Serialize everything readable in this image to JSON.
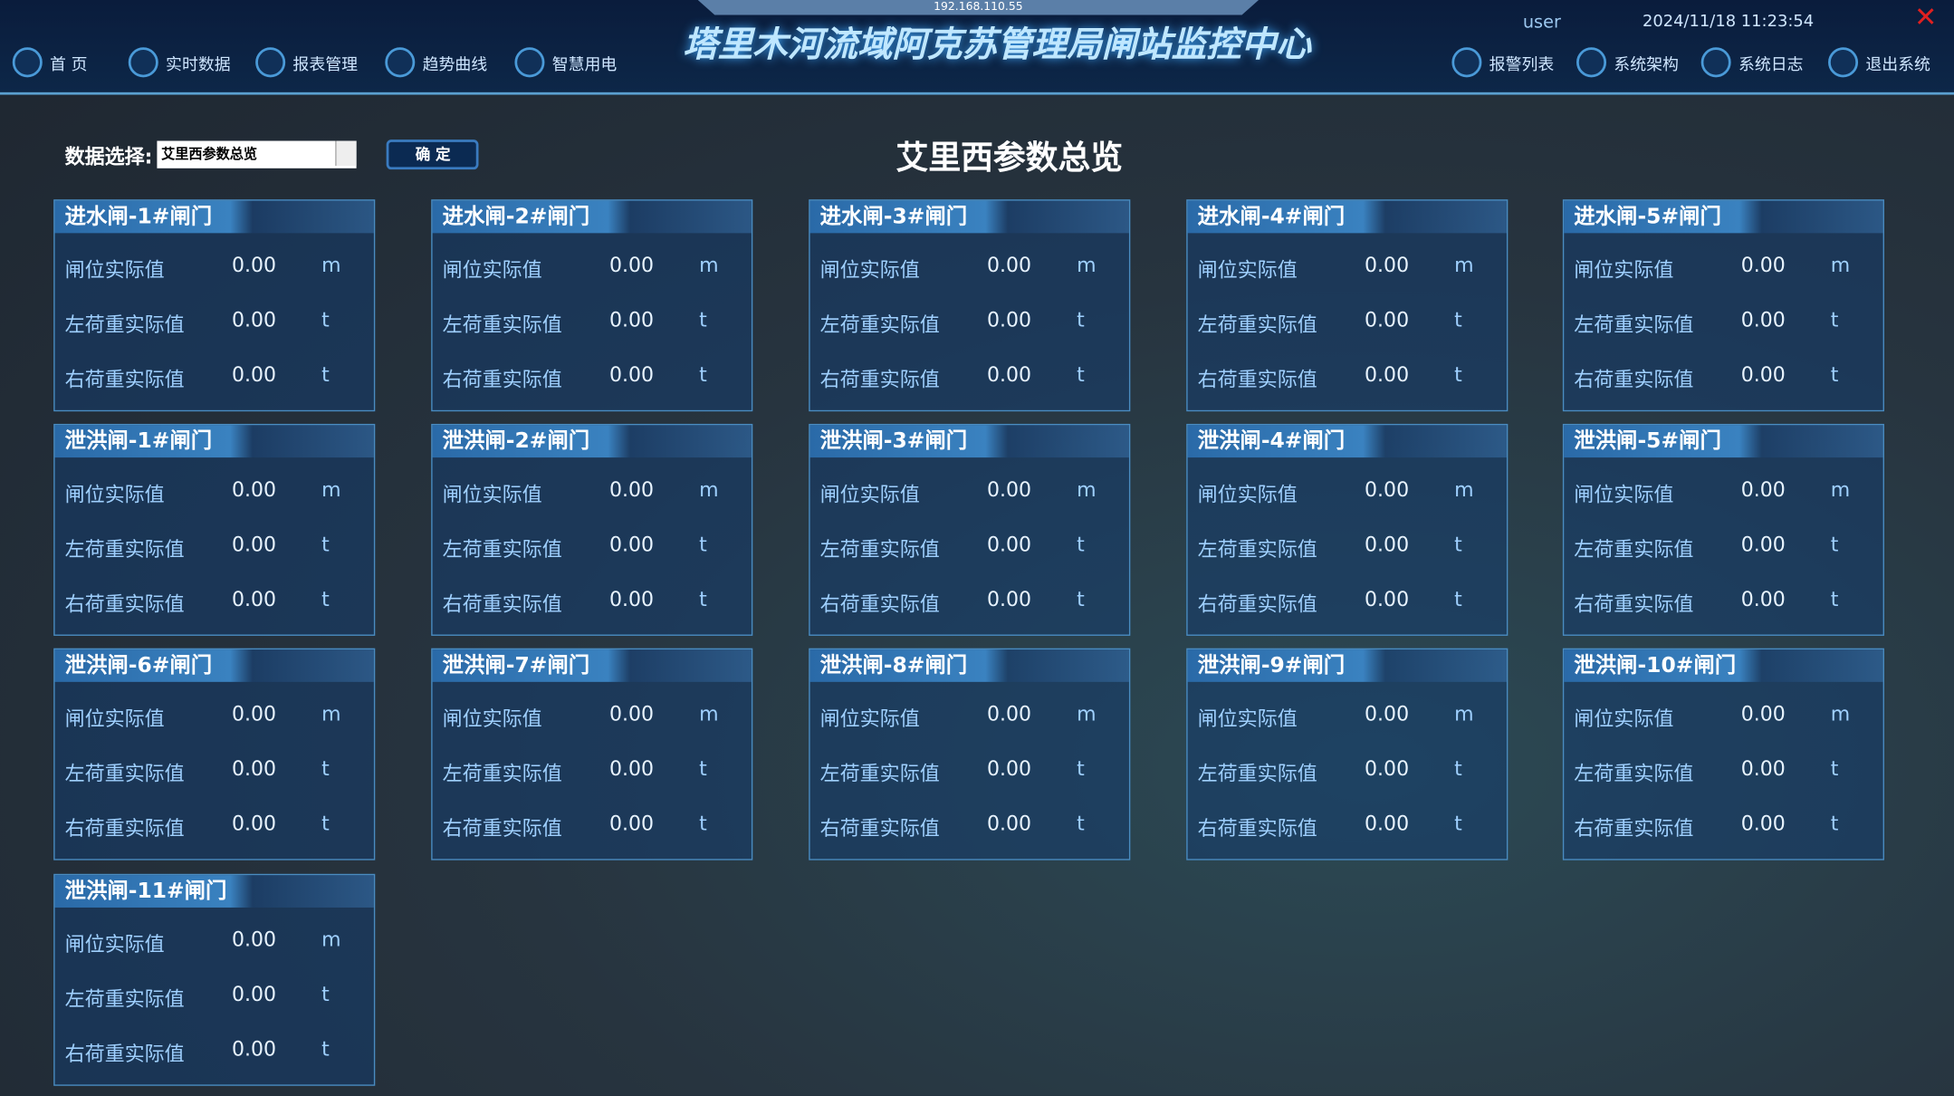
{
  "remote_bar": {
    "address": "192.168.110.55"
  },
  "header": {
    "title": "塔里木河流域阿克苏管理局闸站监控中心",
    "nav_left": [
      "首 页",
      "实时数据",
      "报表管理",
      "趋势曲线",
      "智慧用电"
    ],
    "nav_right": [
      "报警列表",
      "系统架构",
      "系统日志",
      "退出系统"
    ],
    "user": "user",
    "datetime": "2024/11/18 11:23:54"
  },
  "toolbar": {
    "label": "数据选择:",
    "selected": "艾里西参数总览",
    "button": "确 定"
  },
  "page_title": "艾里西参数总览",
  "panels": [
    {
      "name": "进水闸-1#闸门",
      "rows": [
        [
          "闸位实际值",
          "0.00",
          "m"
        ],
        [
          "左荷重实际值",
          "0.00",
          "t"
        ],
        [
          "右荷重实际值",
          "0.00",
          "t"
        ]
      ]
    },
    {
      "name": "进水闸-2#闸门",
      "rows": [
        [
          "闸位实际值",
          "0.00",
          "m"
        ],
        [
          "左荷重实际值",
          "0.00",
          "t"
        ],
        [
          "右荷重实际值",
          "0.00",
          "t"
        ]
      ]
    },
    {
      "name": "进水闸-3#闸门",
      "rows": [
        [
          "闸位实际值",
          "0.00",
          "m"
        ],
        [
          "左荷重实际值",
          "0.00",
          "t"
        ],
        [
          "右荷重实际值",
          "0.00",
          "t"
        ]
      ]
    },
    {
      "name": "进水闸-4#闸门",
      "rows": [
        [
          "闸位实际值",
          "0.00",
          "m"
        ],
        [
          "左荷重实际值",
          "0.00",
          "t"
        ],
        [
          "右荷重实际值",
          "0.00",
          "t"
        ]
      ]
    },
    {
      "name": "进水闸-5#闸门",
      "rows": [
        [
          "闸位实际值",
          "0.00",
          "m"
        ],
        [
          "左荷重实际值",
          "0.00",
          "t"
        ],
        [
          "右荷重实际值",
          "0.00",
          "t"
        ]
      ]
    },
    {
      "name": "泄洪闸-1#闸门",
      "rows": [
        [
          "闸位实际值",
          "0.00",
          "m"
        ],
        [
          "左荷重实际值",
          "0.00",
          "t"
        ],
        [
          "右荷重实际值",
          "0.00",
          "t"
        ]
      ]
    },
    {
      "name": "泄洪闸-2#闸门",
      "rows": [
        [
          "闸位实际值",
          "0.00",
          "m"
        ],
        [
          "左荷重实际值",
          "0.00",
          "t"
        ],
        [
          "右荷重实际值",
          "0.00",
          "t"
        ]
      ]
    },
    {
      "name": "泄洪闸-3#闸门",
      "rows": [
        [
          "闸位实际值",
          "0.00",
          "m"
        ],
        [
          "左荷重实际值",
          "0.00",
          "t"
        ],
        [
          "右荷重实际值",
          "0.00",
          "t"
        ]
      ]
    },
    {
      "name": "泄洪闸-4#闸门",
      "rows": [
        [
          "闸位实际值",
          "0.00",
          "m"
        ],
        [
          "左荷重实际值",
          "0.00",
          "t"
        ],
        [
          "右荷重实际值",
          "0.00",
          "t"
        ]
      ]
    },
    {
      "name": "泄洪闸-5#闸门",
      "rows": [
        [
          "闸位实际值",
          "0.00",
          "m"
        ],
        [
          "左荷重实际值",
          "0.00",
          "t"
        ],
        [
          "右荷重实际值",
          "0.00",
          "t"
        ]
      ]
    },
    {
      "name": "泄洪闸-6#闸门",
      "rows": [
        [
          "闸位实际值",
          "0.00",
          "m"
        ],
        [
          "左荷重实际值",
          "0.00",
          "t"
        ],
        [
          "右荷重实际值",
          "0.00",
          "t"
        ]
      ]
    },
    {
      "name": "泄洪闸-7#闸门",
      "rows": [
        [
          "闸位实际值",
          "0.00",
          "m"
        ],
        [
          "左荷重实际值",
          "0.00",
          "t"
        ],
        [
          "右荷重实际值",
          "0.00",
          "t"
        ]
      ]
    },
    {
      "name": "泄洪闸-8#闸门",
      "rows": [
        [
          "闸位实际值",
          "0.00",
          "m"
        ],
        [
          "左荷重实际值",
          "0.00",
          "t"
        ],
        [
          "右荷重实际值",
          "0.00",
          "t"
        ]
      ]
    },
    {
      "name": "泄洪闸-9#闸门",
      "rows": [
        [
          "闸位实际值",
          "0.00",
          "m"
        ],
        [
          "左荷重实际值",
          "0.00",
          "t"
        ],
        [
          "右荷重实际值",
          "0.00",
          "t"
        ]
      ]
    },
    {
      "name": "泄洪闸-10#闸门",
      "rows": [
        [
          "闸位实际值",
          "0.00",
          "m"
        ],
        [
          "左荷重实际值",
          "0.00",
          "t"
        ],
        [
          "右荷重实际值",
          "0.00",
          "t"
        ]
      ]
    },
    {
      "name": "泄洪闸-11#闸门",
      "rows": [
        [
          "闸位实际值",
          "0.00",
          "m"
        ],
        [
          "左荷重实际值",
          "0.00",
          "t"
        ],
        [
          "右荷重实际值",
          "0.00",
          "t"
        ]
      ]
    }
  ]
}
